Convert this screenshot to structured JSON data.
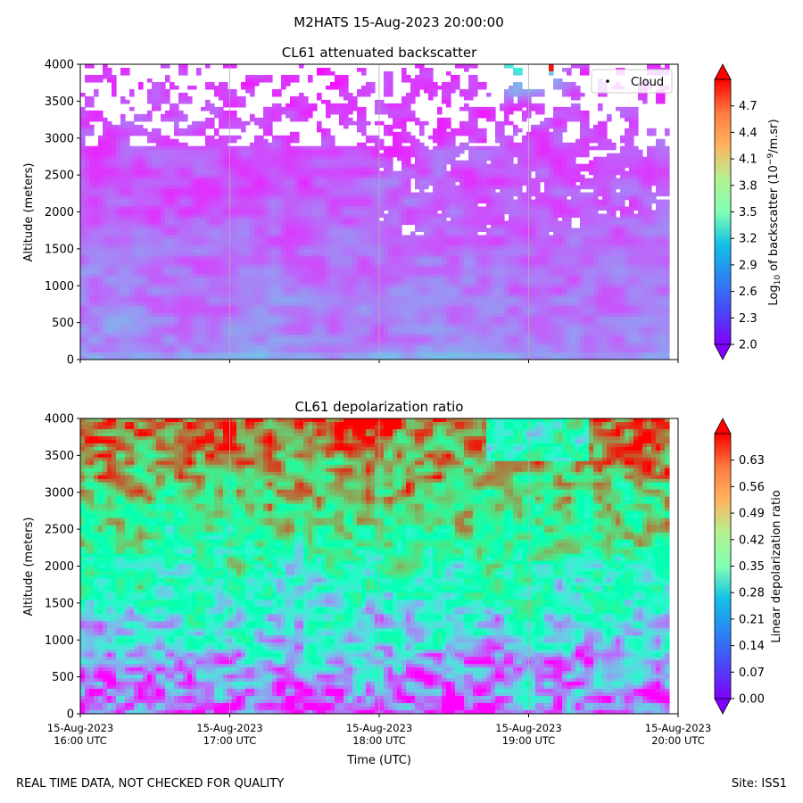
{
  "suptitle": "M2HATS 15-Aug-2023 20:00:00",
  "footer": {
    "left": "REAL TIME DATA, NOT CHECKED FOR QUALITY",
    "right": "Site: ISS1"
  },
  "colors": {
    "colormap": "rainbow",
    "grid": "#b0b0b0",
    "axes": "#000000",
    "mask": "#ffffff"
  },
  "chart_data": [
    {
      "type": "heatmap",
      "title": "CL61 attenuated backscatter",
      "xlabel": "",
      "ylabel": "Altitude (meters)",
      "ylim": [
        0,
        4000
      ],
      "yticks": [
        "0",
        "500",
        "1000",
        "1500",
        "2000",
        "2500",
        "3000",
        "3500",
        "4000"
      ],
      "xlim_hours_utc": [
        16,
        20
      ],
      "data_end_hour_utc": 19.95,
      "colorbar": {
        "label_prefix": "Log",
        "label_sub": "10",
        "label_mid": " of backscatter (10",
        "label_sup": "−9",
        "label_suffix": "/m.sr)",
        "range": [
          2.0,
          5.0
        ],
        "extend": "both",
        "ticks": [
          "2.0",
          "2.3",
          "2.6",
          "2.9",
          "3.2",
          "3.5",
          "3.8",
          "4.1",
          "4.4",
          "4.7"
        ]
      },
      "legend": {
        "entries": [
          "Cloud"
        ],
        "location": "upper-right"
      },
      "description_values": {
        "surface_level": 2.55,
        "upper_level": 2.25,
        "cloud_top_region_hours": [
          18.7,
          19.3
        ],
        "cloud_base_altitude_m": 3950,
        "cloud_peak_value": 4.9
      }
    },
    {
      "type": "heatmap",
      "title": "CL61 depolarization ratio",
      "xlabel": "Time (UTC)",
      "ylabel": "Altitude (meters)",
      "ylim": [
        0,
        4000
      ],
      "yticks": [
        "0",
        "500",
        "1000",
        "1500",
        "2000",
        "2500",
        "3000",
        "3500",
        "4000"
      ],
      "xlim_hours_utc": [
        16,
        20
      ],
      "data_end_hour_utc": 19.95,
      "xticks": [
        {
          "date": "15-Aug-2023",
          "time": "16:00 UTC"
        },
        {
          "date": "15-Aug-2023",
          "time": "17:00 UTC"
        },
        {
          "date": "15-Aug-2023",
          "time": "18:00 UTC"
        },
        {
          "date": "15-Aug-2023",
          "time": "19:00 UTC"
        },
        {
          "date": "15-Aug-2023",
          "time": "20:00 UTC"
        }
      ],
      "colorbar": {
        "label": "Linear depolarization ratio",
        "range": [
          0.0,
          0.7
        ],
        "extend": "both",
        "ticks": [
          "0.00",
          "0.07",
          "0.14",
          "0.21",
          "0.28",
          "0.35",
          "0.42",
          "0.49",
          "0.56",
          "0.63"
        ]
      },
      "description_values": {
        "surface_level": 0.08,
        "mid_level_2000m": 0.35,
        "upper_level": 0.5
      }
    }
  ]
}
